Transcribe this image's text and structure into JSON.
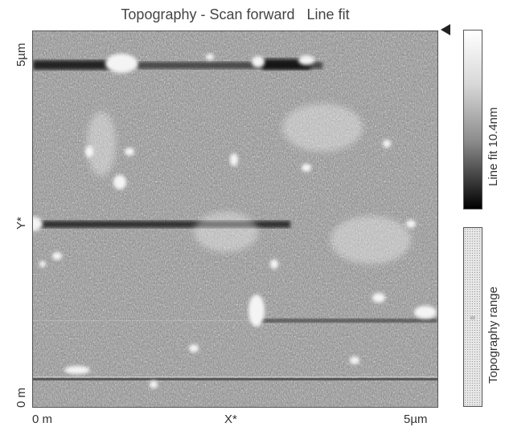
{
  "title": "Topography - Scan forward   Line fit",
  "y_axis": {
    "top_label": "5µm",
    "mid_label": "Y*",
    "bottom_label": "0 m"
  },
  "x_axis": {
    "left_label": "0 m",
    "mid_label": "X*",
    "right_label": "5µm"
  },
  "colorbar_label": "Line fit 10.4nm",
  "range_bar_label": "Topography range",
  "colors": {
    "axis": "#555555",
    "text": "#333333",
    "marker": "#222222"
  },
  "icons": {
    "marker": "triangle-left-icon"
  }
}
